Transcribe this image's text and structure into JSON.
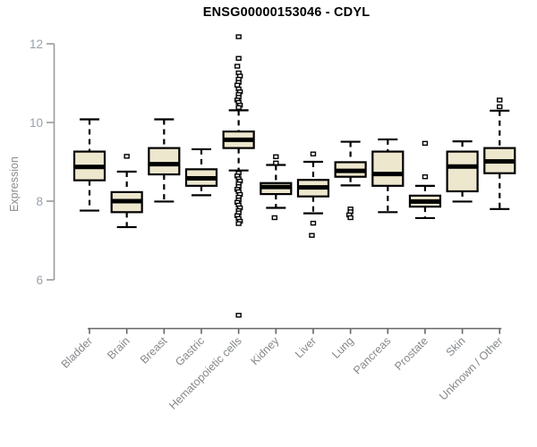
{
  "header": {
    "title": "ENSG00000153046 - CDYL"
  },
  "colors": {
    "box_fill": "#EDE7CE",
    "box_stroke": "#000000",
    "median": "#000000",
    "whisker": "#000000",
    "outlier_fill": "#ffffff",
    "outlier_stroke": "#000000",
    "left_axis": "#9A9A9A",
    "bottom_axis": "#666666",
    "ytick_text": "#97A0AA",
    "xlabel_text": "#85888B",
    "ylabel_text": "#8C8C8C",
    "title_text": "#000000"
  },
  "chart_data": {
    "type": "boxplot",
    "title": "ENSG00000153046 - CDYL",
    "ylabel": "Expression",
    "xlabel": "",
    "ylim": [
      6,
      12
    ],
    "yticks": [
      12,
      10,
      8,
      6
    ],
    "grid": false,
    "legend": false,
    "categories": [
      "Bladder",
      "Brain",
      "Breast",
      "Gastric",
      "Hematopoietic cells",
      "Kidney",
      "Liver",
      "Lung",
      "Pancreas",
      "Prostate",
      "Skin",
      "Unknown / Other"
    ],
    "series": [
      {
        "name": "Bladder",
        "whislo": 7.76,
        "q1": 8.53,
        "med": 8.87,
        "q3": 9.26,
        "whishi": 10.08,
        "outliers": []
      },
      {
        "name": "Brain",
        "whislo": 7.34,
        "q1": 7.72,
        "med": 8.0,
        "q3": 8.23,
        "whishi": 8.75,
        "outliers": [
          9.14
        ]
      },
      {
        "name": "Breast",
        "whislo": 7.99,
        "q1": 8.68,
        "med": 8.94,
        "q3": 9.35,
        "whishi": 10.08,
        "outliers": []
      },
      {
        "name": "Gastric",
        "whislo": 8.15,
        "q1": 8.39,
        "med": 8.58,
        "q3": 8.81,
        "whishi": 9.32,
        "outliers": []
      },
      {
        "name": "Hematopoietic cells",
        "whislo": 8.78,
        "q1": 9.35,
        "med": 9.56,
        "q3": 9.77,
        "whishi": 10.31,
        "outliers": [
          12.18,
          11.63,
          11.43,
          11.26,
          11.18,
          11.1,
          11.02,
          10.95,
          10.85,
          10.78,
          10.71,
          10.64,
          10.57,
          10.51,
          10.44,
          10.38,
          8.71,
          8.64,
          8.57,
          8.51,
          8.44,
          8.37,
          8.3,
          8.24,
          8.17,
          8.1,
          8.03,
          7.97,
          7.9,
          7.83,
          7.76,
          7.7,
          7.63,
          7.56,
          7.49,
          7.43,
          5.1
        ]
      },
      {
        "name": "Kidney",
        "whislo": 7.83,
        "q1": 8.18,
        "med": 8.36,
        "q3": 8.46,
        "whishi": 8.92,
        "outliers": [
          9.13,
          8.97,
          7.58
        ]
      },
      {
        "name": "Liver",
        "whislo": 7.69,
        "q1": 8.12,
        "med": 8.35,
        "q3": 8.54,
        "whishi": 9.0,
        "outliers": [
          9.2,
          7.44,
          7.13
        ]
      },
      {
        "name": "Lung",
        "whislo": 8.4,
        "q1": 8.62,
        "med": 8.77,
        "q3": 8.99,
        "whishi": 9.51,
        "outliers": [
          7.8,
          7.73,
          7.65,
          7.58
        ]
      },
      {
        "name": "Pancreas",
        "whislo": 7.72,
        "q1": 8.39,
        "med": 8.69,
        "q3": 9.26,
        "whishi": 9.57,
        "outliers": []
      },
      {
        "name": "Prostate",
        "whislo": 7.57,
        "q1": 7.86,
        "med": 7.99,
        "q3": 8.14,
        "whishi": 8.39,
        "outliers": [
          9.47,
          8.62
        ]
      },
      {
        "name": "Skin",
        "whislo": 7.99,
        "q1": 8.25,
        "med": 8.88,
        "q3": 9.26,
        "whishi": 9.52,
        "outliers": []
      },
      {
        "name": "Unknown / Other",
        "whislo": 7.8,
        "q1": 8.71,
        "med": 9.01,
        "q3": 9.35,
        "whishi": 10.3,
        "outliers": [
          10.57,
          10.4
        ]
      }
    ]
  }
}
